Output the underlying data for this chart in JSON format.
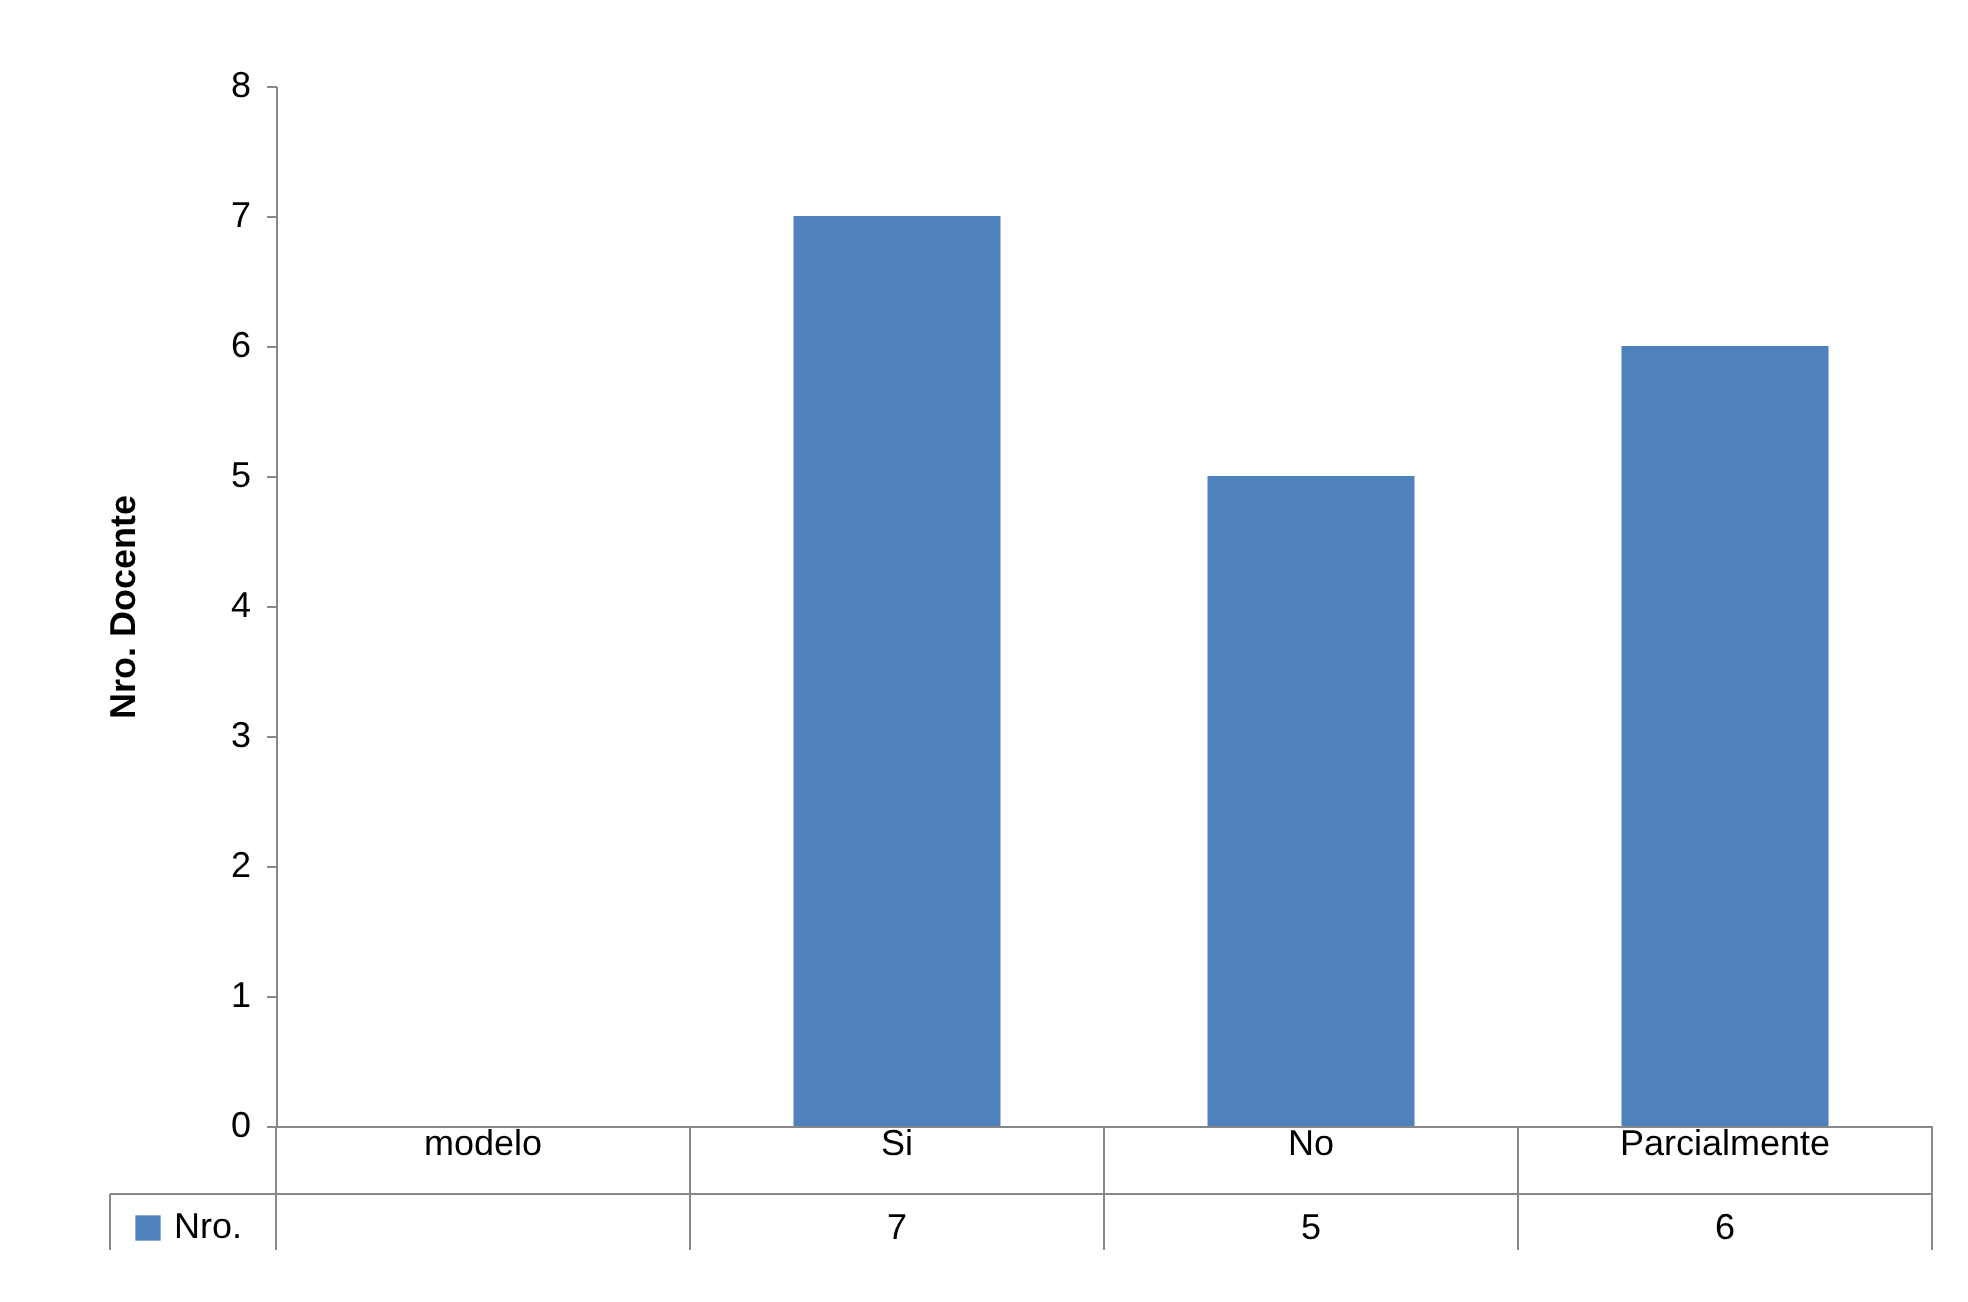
{
  "chart_data": {
    "type": "bar",
    "ylabel": "Nro. Docente",
    "categories": [
      "modelo",
      "Si",
      "No",
      "Parcialmente"
    ],
    "series": [
      {
        "name": "Nro.",
        "color": "#4f81bd",
        "values": [
          null,
          7,
          5,
          6
        ]
      }
    ],
    "ylim": [
      0,
      8
    ],
    "yticks": [
      0,
      1,
      2,
      3,
      4,
      5,
      6,
      7,
      8
    ],
    "grid": false,
    "legend": "bottom",
    "data_labels": true
  }
}
